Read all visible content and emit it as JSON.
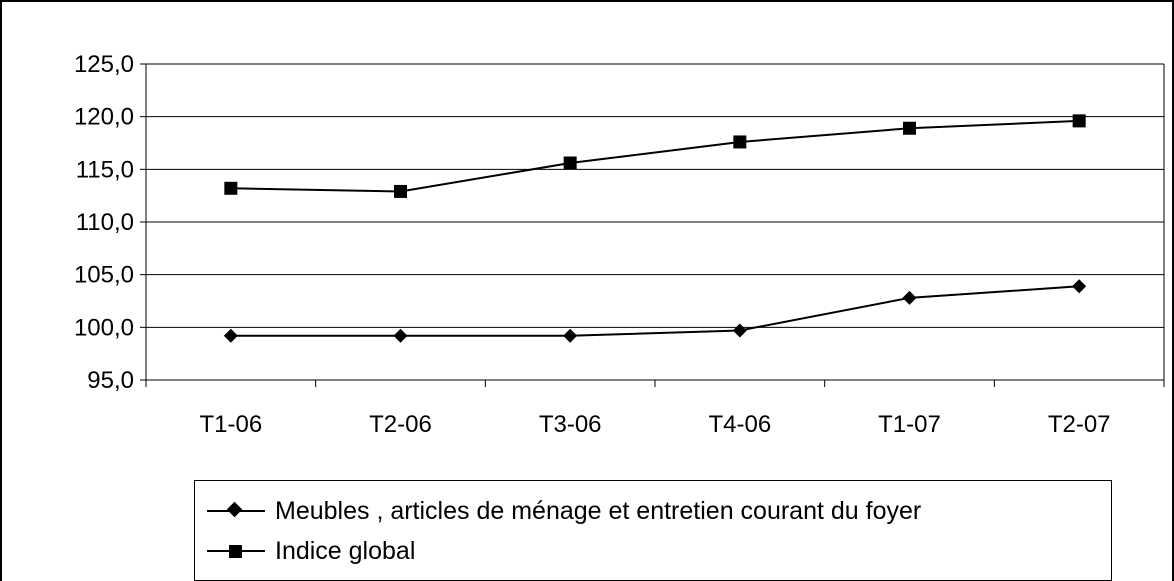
{
  "chart_data": {
    "type": "line",
    "categories": [
      "T1-06",
      "T2-06",
      "T3-06",
      "T4-06",
      "T1-07",
      "T2-07"
    ],
    "series": [
      {
        "name": "Meubles , articles de ménage et entretien courant du foyer",
        "marker": "diamond",
        "color": "#000000",
        "values": [
          99.2,
          99.2,
          99.2,
          99.7,
          102.8,
          103.9
        ]
      },
      {
        "name": "Indice global",
        "marker": "square",
        "color": "#000000",
        "values": [
          113.2,
          112.9,
          115.6,
          117.6,
          118.9,
          119.6
        ]
      }
    ],
    "y_ticks": [
      "95,0",
      "100,0",
      "105,0",
      "110,0",
      "115,0",
      "120,0",
      "125,0"
    ],
    "ylim": [
      95,
      125
    ],
    "title": "",
    "xlabel": "",
    "ylabel": "",
    "grid": "horizontal",
    "legend_position": "bottom"
  }
}
